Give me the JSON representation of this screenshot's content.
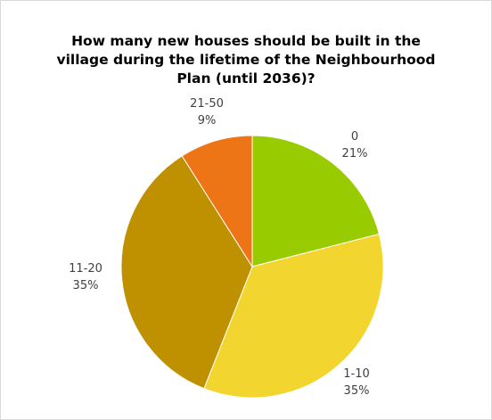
{
  "chart_data": {
    "type": "pie",
    "title": "How many new houses should be built in the village during the lifetime of the Neighbourhood Plan (until 2036)?",
    "categories": [
      "0",
      "1-10",
      "11-20",
      "21-50"
    ],
    "values": [
      21,
      35,
      35,
      9
    ],
    "percent_labels": [
      "21%",
      "35%",
      "35%",
      "9%"
    ],
    "colors": [
      "#99CC00",
      "#F2D52E",
      "#BF9000",
      "#ED7516"
    ],
    "start_angle": "12 o'clock",
    "direction": "clockwise",
    "legend": "none",
    "data_labels": "category name and percentage, outside slices"
  }
}
